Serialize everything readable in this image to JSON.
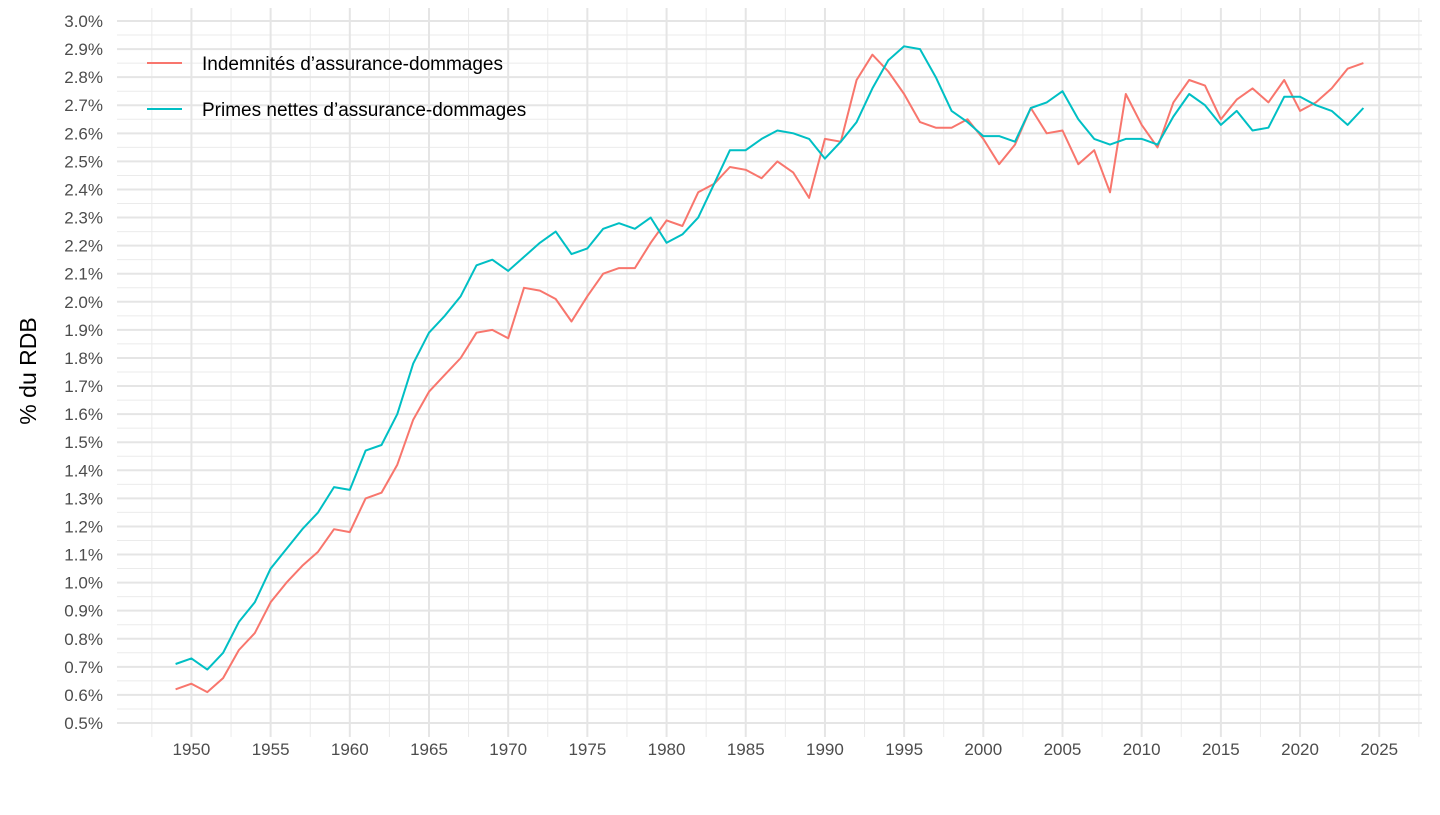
{
  "chart_data": {
    "type": "line",
    "title": "",
    "xlabel": "",
    "ylabel": "% du RDB",
    "xlim": [
      1945.3,
      2027.7
    ],
    "ylim": [
      0.5,
      3.0
    ],
    "grid": true,
    "legend_position": "top-left",
    "x_ticks": [
      "1950",
      "1955",
      "1960",
      "1965",
      "1970",
      "1975",
      "1980",
      "1985",
      "1990",
      "1995",
      "2000",
      "2005",
      "2010",
      "2015",
      "2020",
      "2025"
    ],
    "y_ticks": [
      "0.5%",
      "0.6%",
      "0.7%",
      "0.8%",
      "0.9%",
      "1.0%",
      "1.1%",
      "1.2%",
      "1.3%",
      "1.4%",
      "1.5%",
      "1.6%",
      "1.7%",
      "1.8%",
      "1.9%",
      "2.0%",
      "2.1%",
      "2.2%",
      "2.3%",
      "2.4%",
      "2.5%",
      "2.6%",
      "2.7%",
      "2.8%",
      "2.9%",
      "3.0%"
    ],
    "x_start": 1949,
    "series": [
      {
        "name": "Indemnités d’assurance-dommages",
        "color": "#F8766D",
        "values": [
          0.62,
          0.64,
          0.61,
          0.66,
          0.76,
          0.82,
          0.93,
          1.0,
          1.06,
          1.11,
          1.19,
          1.18,
          1.3,
          1.32,
          1.42,
          1.58,
          1.68,
          1.74,
          1.8,
          1.89,
          1.9,
          1.87,
          2.05,
          2.04,
          2.01,
          1.93,
          2.02,
          2.1,
          2.12,
          2.12,
          2.21,
          2.29,
          2.27,
          2.39,
          2.42,
          2.48,
          2.47,
          2.44,
          2.5,
          2.46,
          2.37,
          2.58,
          2.57,
          2.79,
          2.88,
          2.82,
          2.74,
          2.64,
          2.62,
          2.62,
          2.65,
          2.58,
          2.49,
          2.56,
          2.69,
          2.6,
          2.61,
          2.49,
          2.54,
          2.39,
          2.74,
          2.63,
          2.55,
          2.71,
          2.79,
          2.77,
          2.65,
          2.72,
          2.76,
          2.71,
          2.79,
          2.68,
          2.71,
          2.76,
          2.83,
          2.85
        ]
      },
      {
        "name": "Primes nettes d’assurance-dommages",
        "color": "#00BFC4",
        "values": [
          0.71,
          0.73,
          0.69,
          0.75,
          0.86,
          0.93,
          1.05,
          1.12,
          1.19,
          1.25,
          1.34,
          1.33,
          1.47,
          1.49,
          1.6,
          1.78,
          1.89,
          1.95,
          2.02,
          2.13,
          2.15,
          2.11,
          2.16,
          2.21,
          2.25,
          2.17,
          2.19,
          2.26,
          2.28,
          2.26,
          2.3,
          2.21,
          2.24,
          2.3,
          2.42,
          2.54,
          2.54,
          2.58,
          2.61,
          2.6,
          2.58,
          2.51,
          2.57,
          2.64,
          2.76,
          2.86,
          2.91,
          2.9,
          2.8,
          2.68,
          2.64,
          2.59,
          2.59,
          2.57,
          2.69,
          2.71,
          2.75,
          2.65,
          2.58,
          2.56,
          2.58,
          2.58,
          2.56,
          2.66,
          2.74,
          2.7,
          2.63,
          2.68,
          2.61,
          2.62,
          2.73,
          2.73,
          2.7,
          2.68,
          2.63,
          2.69
        ]
      }
    ]
  }
}
